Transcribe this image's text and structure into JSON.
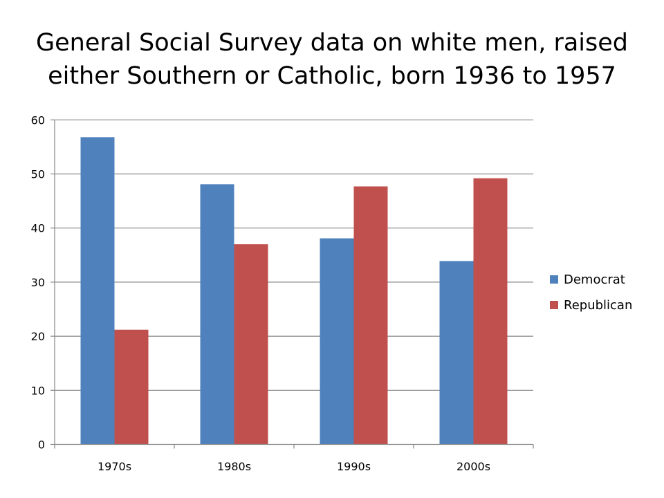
{
  "chart_data": {
    "type": "bar",
    "title": [
      "General Social Survey data on white men, raised",
      "either Southern or Catholic, born 1936 to 1957"
    ],
    "xlabel": "",
    "ylabel": "",
    "categories": [
      "1970s",
      "1980s",
      "1990s",
      "2000s"
    ],
    "series": [
      {
        "name": "Democrat",
        "color": "#4f81bd",
        "values": [
          56.8,
          48.1,
          38.1,
          33.9
        ]
      },
      {
        "name": "Republican",
        "color": "#c0504d",
        "values": [
          21.2,
          37.0,
          47.7,
          49.2
        ]
      }
    ],
    "ylim": [
      0,
      60
    ],
    "yticks": [
      0,
      10,
      20,
      30,
      40,
      50,
      60
    ],
    "grid": true,
    "legend": "right"
  }
}
